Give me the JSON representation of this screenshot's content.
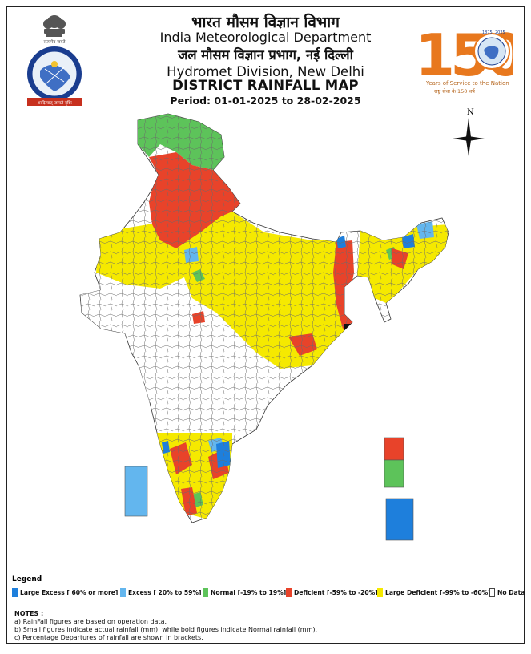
{
  "header": {
    "title_hindi": "भारत मौसम विज्ञान विभाग",
    "title_english": "India Meteorological Department",
    "division_hindi": "जल मौसम विज्ञान प्रभाग, नई दिल्ली",
    "division_english": "Hydromet Division, New Delhi",
    "map_title": "DISTRICT RAINFALL MAP",
    "period": "Period: 01-01-2025 to 28-02-2025"
  },
  "logo": {
    "number": "150",
    "years_left": "1875",
    "years_right": "2025",
    "tagline": "Years of Service to the Nation",
    "tagline_hindi": "राष्ट्र सेवा के 150 वर्ष"
  },
  "emblem": {
    "motto": "सत्यमेव जयते",
    "seal_text_hindi": "भारत मौसम विज्ञान विभाग",
    "seal_text_english": "INDIA METEOROLOGICAL DEPARTMENT",
    "seal_banner": "आदित्यात् जायते वृष्टिः"
  },
  "compass": {
    "label": "N"
  },
  "legend": {
    "title": "Legend",
    "items": [
      {
        "label": "Large Excess [ 60% or more]",
        "color": "#1e7fdc"
      },
      {
        "label": "Excess [ 20% to 59%]",
        "color": "#63b6ee"
      },
      {
        "label": "Normal [-19% to 19%]",
        "color": "#5dc35a"
      },
      {
        "label": "Deficient [-59% to -20%]",
        "color": "#e8432a"
      },
      {
        "label": "Large Deficient [-99% to -60%]",
        "color": "#f5e900"
      },
      {
        "label": "No Data",
        "color": "#ffffff"
      }
    ]
  },
  "notes": {
    "title": "NOTES :",
    "lines": [
      "a) RainFall figures are based on operation data.",
      "b) Small figures indicate actual rainfall (mm), while bold figures indicate Normal rainfall (mm).",
      "c) Percentage Departures of rainfall are shown in brackets."
    ]
  },
  "map_colors": {
    "large_excess": "#1e7fdc",
    "excess": "#63b6ee",
    "normal": "#5dc35a",
    "deficient": "#e8432a",
    "large_deficient": "#f5e900",
    "no_data": "#ffffff",
    "no_data_grey": "#b9b9b9",
    "boundary": "#333333"
  }
}
